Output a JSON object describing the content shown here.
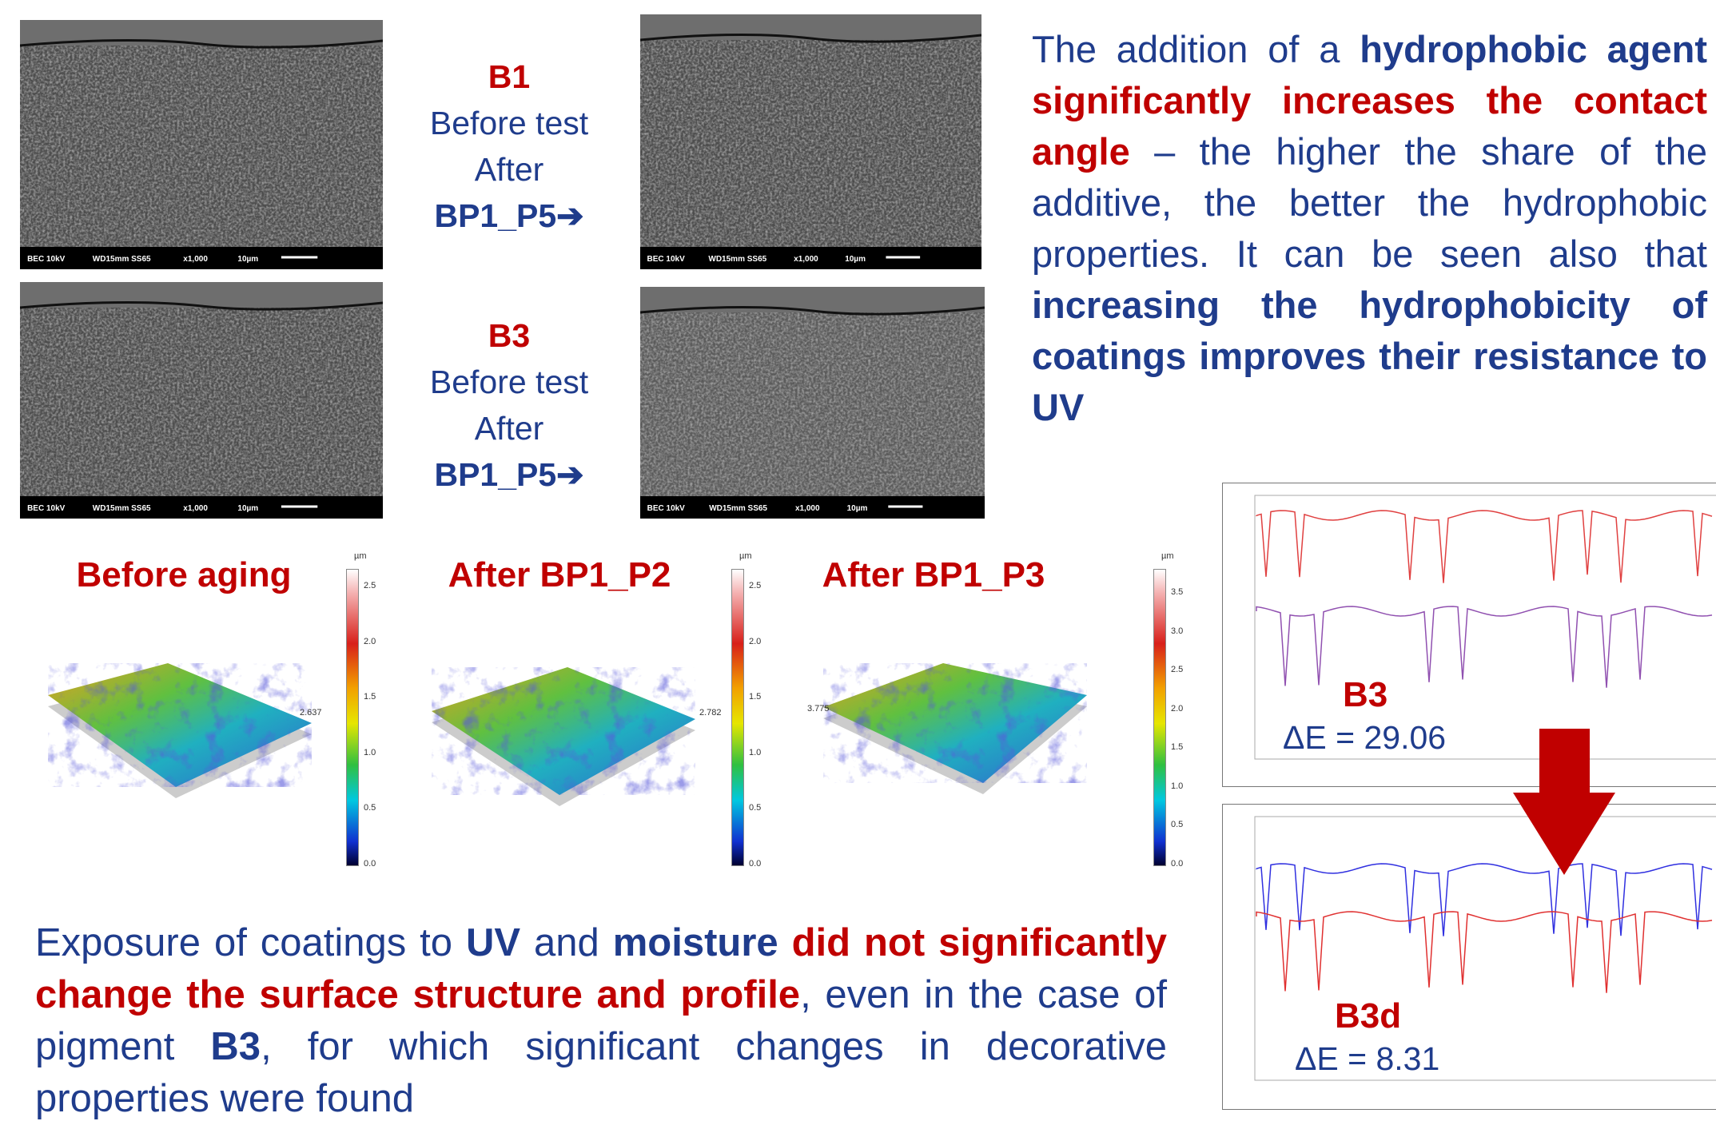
{
  "sem_panels": [
    {
      "label": "B1",
      "line1": "Before test",
      "line2": "After",
      "line3": "BP1_P5➔"
    },
    {
      "label": "B3",
      "line1": "Before test",
      "line2": "After",
      "line3": "BP1_P5➔"
    }
  ],
  "sem_caption": [
    "BEC 10kV",
    "WD15mm SS65",
    "x1,000",
    "10µm"
  ],
  "paragraph1": {
    "runs": [
      {
        "text": "The addition of a ",
        "style": "plain"
      },
      {
        "text": "hydrophobic agent",
        "style": "blue-bold"
      },
      {
        "text": " significantly increases the contact angle",
        "style": "red-bold"
      },
      {
        "text": " – the higher the share of the additive, the better the hydrophobic properties. It can be seen also that ",
        "style": "plain"
      },
      {
        "text": "increasing the hydrophobicity of coatings improves their resistance to UV",
        "style": "blue-bold"
      }
    ]
  },
  "profiles": [
    {
      "title": "Before aging",
      "unit": "µm",
      "scale": [
        "2.5",
        "2.0",
        "1.5",
        "1.0",
        "0.5",
        "0.0"
      ],
      "max": "2.637"
    },
    {
      "title": "After BP1_P2",
      "unit": "µm",
      "scale": [
        "2.5",
        "2.0",
        "1.5",
        "1.0",
        "0.5",
        "0.0"
      ],
      "max": "2.782"
    },
    {
      "title": "After BP1_P3",
      "unit": "µm",
      "scale": [
        "3.5",
        "3.0",
        "2.5",
        "2.0",
        "1.5",
        "1.0",
        "0.5",
        "0.0"
      ],
      "max": "3.775"
    }
  ],
  "paragraph2": {
    "runs": [
      {
        "text": "Exposure of coatings to ",
        "style": "plain"
      },
      {
        "text": "UV",
        "style": "blue-bold"
      },
      {
        "text": " and ",
        "style": "plain"
      },
      {
        "text": "moisture",
        "style": "blue-bold"
      },
      {
        "text": " did not significantly change the surface structure and profile",
        "style": "red-bold"
      },
      {
        "text": ", even in the case of pigment ",
        "style": "plain"
      },
      {
        "text": "B3",
        "style": "blue-bold"
      },
      {
        "text": ", for which significant changes in decorative properties were found",
        "style": "plain"
      }
    ]
  },
  "ftir": [
    {
      "label": "B3",
      "delta": "ΔE = 29.06"
    },
    {
      "label": "B3d",
      "delta": "ΔE = 8.31"
    }
  ]
}
